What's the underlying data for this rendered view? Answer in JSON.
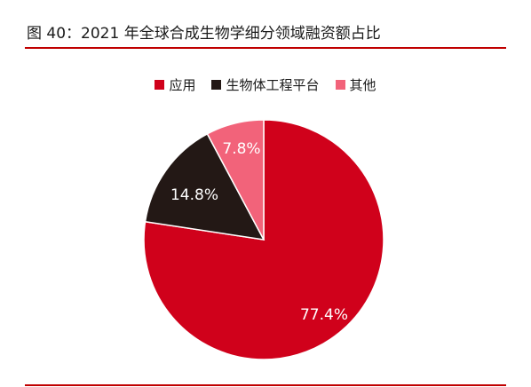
{
  "caption": "图 40：2021 年全球合成生物学细分领域融资额占比",
  "colors": {
    "rule": "#c00000"
  },
  "chart_data": {
    "type": "pie",
    "title": "",
    "legend_position": "top",
    "series": [
      {
        "name": "应用",
        "value": 77.4,
        "label": "77.4%",
        "color": "#d0011b"
      },
      {
        "name": "生物体工程平台",
        "value": 14.8,
        "label": "14.8%",
        "color": "#231815"
      },
      {
        "name": "其他",
        "value": 7.8,
        "label": "7.8%",
        "color": "#f2637a"
      }
    ]
  }
}
